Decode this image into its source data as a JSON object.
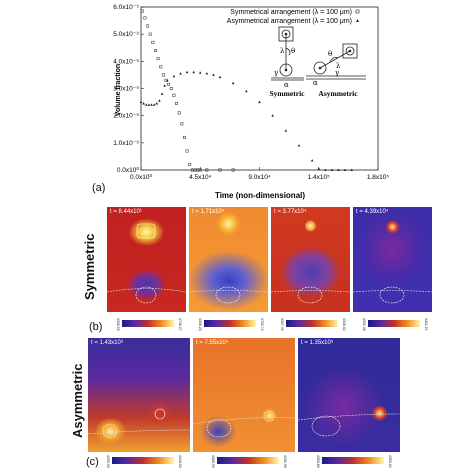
{
  "chart_data": {
    "type": "scatter",
    "xlabel": "Time (non-dimensional)",
    "ylabel": "Volume fraction",
    "xlim": [
      0,
      180000
    ],
    "ylim": [
      0,
      6e-09
    ],
    "x_ticks": [
      "0.0x10⁰",
      "4.5x10⁴",
      "9.0x10⁴",
      "1.4x10⁵",
      "1.8x10⁵"
    ],
    "y_ticks": [
      "0.0x10⁰",
      "1.0x10⁻⁹",
      "2.0x10⁻⁹",
      "3.0x10⁻⁹",
      "4.0x10⁻⁹",
      "5.0x10⁻⁹",
      "6.0x10⁻⁹"
    ],
    "series": [
      {
        "name": "Symmetrical arrangement (λ = 100 μm)",
        "marker": "square",
        "x": [
          1000,
          3000,
          5000,
          7000,
          9000,
          11000,
          13000,
          15000,
          17000,
          19000,
          21000,
          23000,
          25000,
          27000,
          29000,
          31000,
          33000,
          35000,
          37000,
          39000,
          41000,
          43000,
          45000,
          50000,
          60000,
          70000
        ],
        "y": [
          5.85e-09,
          5.6e-09,
          5.3e-09,
          5e-09,
          4.7e-09,
          4.4e-09,
          4.1e-09,
          3.8e-09,
          3.5e-09,
          3.3e-09,
          3.15e-09,
          3e-09,
          2.75e-09,
          2.45e-09,
          2.1e-09,
          1.7e-09,
          1.2e-09,
          7e-10,
          2e-10,
          0,
          0,
          0,
          0,
          0,
          0,
          0
        ]
      },
      {
        "name": "Asymmetrical arrangement (λ = 100 μm)",
        "marker": "triangle",
        "x": [
          0,
          2000,
          4000,
          6000,
          8000,
          10000,
          12000,
          14000,
          16000,
          18000,
          20000,
          25000,
          30000,
          35000,
          40000,
          45000,
          50000,
          55000,
          60000,
          70000,
          80000,
          90000,
          100000,
          110000,
          120000,
          130000,
          135000,
          140000,
          145000,
          150000,
          155000,
          160000
        ],
        "y": [
          2.5e-09,
          2.45e-09,
          2.4e-09,
          2.4e-09,
          2.4e-09,
          2.4e-09,
          2.45e-09,
          2.55e-09,
          2.8e-09,
          3.1e-09,
          3.3e-09,
          3.45e-09,
          3.55e-09,
          3.6e-09,
          3.6e-09,
          3.58e-09,
          3.55e-09,
          3.5e-09,
          3.42e-09,
          3.2e-09,
          2.9e-09,
          2.5e-09,
          2e-09,
          1.45e-09,
          9e-10,
          3.5e-10,
          5e-11,
          0,
          0,
          0,
          0,
          0
        ]
      }
    ],
    "legend": "top-right"
  },
  "figure": {
    "panel_a_label": "(a)",
    "panel_b_label": "(b)",
    "panel_c_label": "(c)",
    "row_symmetric": "Symmetric",
    "row_asymmetric": "Asymmetric",
    "inset_symmetric": "Symmetric",
    "inset_asymmetric": "Asymmetric",
    "inset_lambda": "λ",
    "inset_theta": "θ",
    "inset_gamma": "γ",
    "inset_alpha": "α",
    "sym_times": [
      "t = 8.44x10¹",
      "t = 1.71x10⁴",
      "t = 3.77x10⁴",
      "t = 4.39x10⁴"
    ],
    "asym_times": [
      "t = 1.43x10³",
      "t = 7.55x10⁴",
      "t = 1.35x10⁵"
    ],
    "sym_colorbars": [
      {
        "min": "4336.59",
        "max": "4746.27"
      },
      {
        "min": "4336.20",
        "max": "4702.72"
      },
      {
        "min": "4337.49",
        "max": "4348.02"
      },
      {
        "min": "4331.40",
        "max": "4411.29"
      }
    ],
    "asym_colorbars": [
      {
        "min": "4295.39",
        "max": "4440.03"
      },
      {
        "min": "4300.93",
        "max": "4431.96"
      },
      {
        "min": "4300.80",
        "max": "4355.02"
      }
    ]
  }
}
